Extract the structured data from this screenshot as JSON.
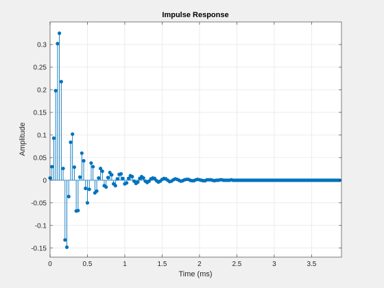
{
  "chart_data": {
    "type": "stem",
    "title": "Impulse Response",
    "xlabel": "Time (ms)",
    "ylabel": "Amplitude",
    "xlim": [
      0,
      3.9
    ],
    "ylim": [
      -0.17,
      0.35
    ],
    "xticks": [
      0,
      0.5,
      1,
      1.5,
      2,
      2.5,
      3,
      3.5
    ],
    "xtick_labels": [
      "0",
      "0.5",
      "1",
      "1.5",
      "2",
      "2.5",
      "3",
      "3.5"
    ],
    "yticks": [
      -0.15,
      -0.1,
      -0.05,
      0,
      0.05,
      0.1,
      0.15,
      0.2,
      0.25,
      0.3
    ],
    "ytick_labels": [
      "-0.15",
      "-0.1",
      "-0.05",
      "0",
      "0.05",
      "0.1",
      "0.15",
      "0.2",
      "0.25",
      "0.3"
    ],
    "grid": true,
    "marker_color": "#0072bd",
    "sample_interval": 0.025,
    "values": [
      0.005,
      0.03,
      0.093,
      0.198,
      0.302,
      0.325,
      0.218,
      0.026,
      -0.132,
      -0.148,
      -0.036,
      0.084,
      0.102,
      0.029,
      -0.068,
      -0.067,
      0.007,
      0.06,
      0.043,
      -0.018,
      -0.05,
      -0.02,
      0.038,
      0.03,
      -0.028,
      -0.024,
      0.005,
      0.026,
      0.02,
      -0.012,
      -0.015,
      0.006,
      0.017,
      0.012,
      -0.008,
      -0.012,
      0.003,
      0.013,
      0.014,
      0.004,
      -0.008,
      -0.006,
      0.004,
      0.01,
      0.008,
      -0.002,
      -0.007,
      -0.004,
      0.004,
      0.008,
      0.005,
      -0.002,
      -0.005,
      -0.002,
      0.003,
      0.005,
      0.004,
      -0.001,
      -0.004,
      -0.002,
      0.002,
      0.004,
      0.003,
      0.0,
      -0.003,
      -0.002,
      0.001,
      0.003,
      0.002,
      0.0,
      -0.002,
      -0.001,
      0.001,
      0.002,
      0.002,
      0.0,
      -0.001,
      -0.001,
      0.001,
      0.002,
      0.001,
      0.0,
      -0.001,
      -0.001,
      0.001,
      0.001,
      0.001,
      0.0,
      -0.001,
      0.0,
      0.0,
      0.001,
      0.001,
      0.0,
      0.0,
      0.0,
      0.0,
      0.001,
      0.0,
      0.0,
      0.0,
      0.0,
      0.0,
      0.0,
      0.0,
      0.0,
      0.0,
      0.0,
      0.0,
      0.0,
      0.0,
      0.0,
      0.0,
      0.0,
      0.0,
      0.0,
      0.0,
      0.0,
      0.0,
      0.0,
      0.0,
      0.0,
      0.0,
      0.0,
      0.0,
      0.0,
      0.0,
      0.0,
      0.0,
      0.0,
      0.0,
      0.0,
      0.0,
      0.0,
      0.0,
      0.0,
      0.0,
      0.0,
      0.0,
      0.0,
      0.0,
      0.0,
      0.0,
      0.0,
      0.0,
      0.0,
      0.0,
      0.0,
      0.0,
      0.0,
      0.0,
      0.0,
      0.0,
      0.0,
      0.0,
      0.0
    ]
  }
}
